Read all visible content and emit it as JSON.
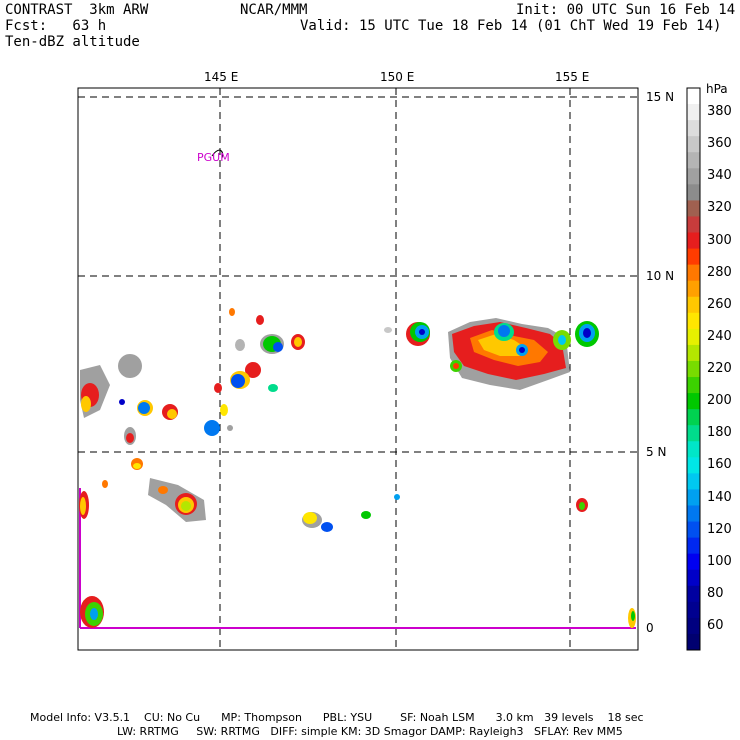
{
  "header": {
    "model": "CONTRAST  3km ARW",
    "forecast": "Fcst:   63 h",
    "field": "Ten-dBZ altitude",
    "center": "NCAR/MMM",
    "init": "Init: 00 UTC Sun 16 Feb 14",
    "valid": "Valid: 15 UTC Tue 18 Feb 14 (01 ChT Wed 19 Feb 14)"
  },
  "map": {
    "lon_labels": [
      "145 E",
      "150 E",
      "155 E"
    ],
    "lat_labels": [
      "15 N",
      "10 N",
      "5 N",
      "0"
    ],
    "station_label": "PGUM",
    "station_label_color": "#cc00cc",
    "domain_edge_color": "#cc00cc"
  },
  "colorbar": {
    "unit": "hPa",
    "levels": [
      {
        "label": "",
        "color": "#ffffff"
      },
      {
        "label": "380",
        "color": "#f0f0f0"
      },
      {
        "label": "",
        "color": "#dcdcdc"
      },
      {
        "label": "360",
        "color": "#c8c8c8"
      },
      {
        "label": "",
        "color": "#b4b4b4"
      },
      {
        "label": "340",
        "color": "#a0a0a0"
      },
      {
        "label": "",
        "color": "#8c8c8c"
      },
      {
        "label": "320",
        "color": "#a06050"
      },
      {
        "label": "",
        "color": "#c83c3c"
      },
      {
        "label": "300",
        "color": "#e61e1e"
      },
      {
        "label": "",
        "color": "#ff3c00"
      },
      {
        "label": "280",
        "color": "#ff7800"
      },
      {
        "label": "",
        "color": "#ffa000"
      },
      {
        "label": "260",
        "color": "#ffc800"
      },
      {
        "label": "",
        "color": "#ffe600"
      },
      {
        "label": "240",
        "color": "#e6f000"
      },
      {
        "label": "",
        "color": "#b4e600"
      },
      {
        "label": "220",
        "color": "#78dc00"
      },
      {
        "label": "",
        "color": "#3cd200"
      },
      {
        "label": "200",
        "color": "#00c800"
      },
      {
        "label": "",
        "color": "#00d250"
      },
      {
        "label": "180",
        "color": "#00dc8c"
      },
      {
        "label": "",
        "color": "#00e6c8"
      },
      {
        "label": "160",
        "color": "#00e6e6"
      },
      {
        "label": "",
        "color": "#00c8f0"
      },
      {
        "label": "140",
        "color": "#00a0f0"
      },
      {
        "label": "",
        "color": "#0078f0"
      },
      {
        "label": "120",
        "color": "#0050f0"
      },
      {
        "label": "",
        "color": "#0028f0"
      },
      {
        "label": "100",
        "color": "#0000f0"
      },
      {
        "label": "",
        "color": "#0000c8"
      },
      {
        "label": "80",
        "color": "#0000a0"
      },
      {
        "label": "",
        "color": "#000090"
      },
      {
        "label": "60",
        "color": "#000080"
      },
      {
        "label": "",
        "color": "#000070"
      }
    ]
  },
  "footer": {
    "line1": "Model Info: V3.5.1    CU: No Cu      MP: Thompson      PBL: YSU        SF: Noah LSM      3.0 km   39 levels    18 sec",
    "line2": "LW: RRTMG     SW: RRTMG   DIFF: simple KM: 3D Smagor DAMP: Rayleigh3   SFLAY: Rev MM5"
  }
}
